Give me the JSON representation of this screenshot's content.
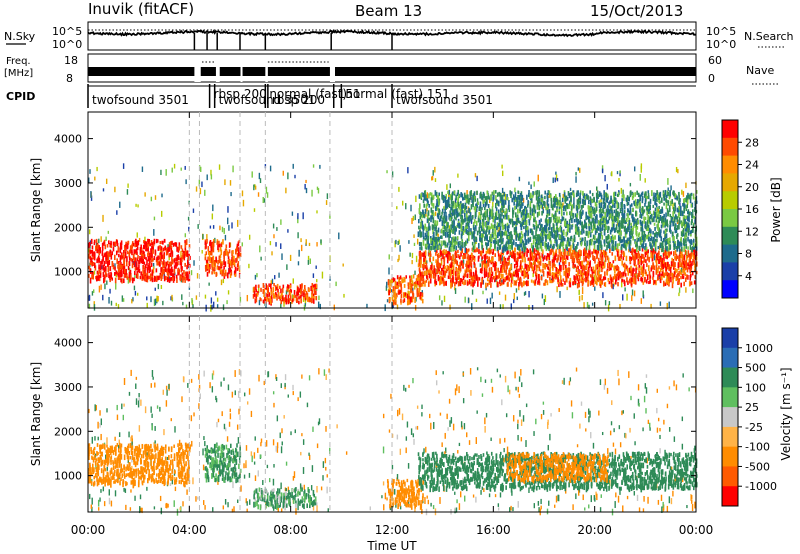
{
  "header": {
    "title_left": "Inuvik (fitACF)",
    "title_center": "Beam 13",
    "title_right": "15/Oct/2013"
  },
  "strips": {
    "nsky_label": "N.Sky",
    "nsky_ticks": [
      "10^5",
      "10^0"
    ],
    "nsearch_label": "N.Search",
    "nsearch_ticks": [
      "10^5",
      "10^0"
    ],
    "freq_label_1": "Freq.",
    "freq_label_2": "[MHz]",
    "freq_ticks": [
      "18",
      "8"
    ],
    "nave_label": "Nave",
    "nave_ticks": [
      "60",
      "0"
    ],
    "cpid_label": "CPID",
    "cpid_segments": [
      {
        "label": "twofsound  3501",
        "start": 0.0,
        "end": 4.05
      },
      {
        "label": "rbsp  200",
        "start": 4.8,
        "end": 6.0
      },
      {
        "label": "twofsound  3501",
        "start": 5.0,
        "end": 7.0
      },
      {
        "label": "normal  (fast)",
        "start": 7.0,
        "end": 9.5
      },
      {
        "label": "rbsp  200",
        "start": 7.1,
        "end": 8.2
      },
      {
        "label": "151",
        "start": 9.7,
        "end": 10.0
      },
      {
        "label": "normal  (fast)  151",
        "start": 10.0,
        "end": 12.0
      },
      {
        "label": "twofsound  3501",
        "start": 12.0,
        "end": 24.0
      }
    ]
  },
  "panels": {
    "power": {
      "ylabel": "Slant Range [km]",
      "cbar_label": "Power [dB]",
      "cbar_ticks": [
        "28",
        "24",
        "20",
        "16",
        "12",
        "8",
        "4"
      ],
      "cbar_colors": [
        "#ff0000",
        "#ff4a00",
        "#ff8c00",
        "#e6a800",
        "#b8cc00",
        "#7ac943",
        "#2e8b57",
        "#1e6b8c",
        "#1a3fa8",
        "#0000ff"
      ]
    },
    "velocity": {
      "ylabel": "Slant Range [km]",
      "cbar_label": "Velocity [m s⁻¹]",
      "cbar_ticks": [
        "1000",
        "500",
        "100",
        "25",
        "-25",
        "-100",
        "-500",
        "-1000"
      ],
      "cbar_colors": [
        "#1a3fa8",
        "#2a6db5",
        "#2e8b57",
        "#5fbf5f",
        "#c8c8c8",
        "#ffb347",
        "#ff8c00",
        "#ff5a00",
        "#ff0000"
      ]
    }
  },
  "xaxis": {
    "label": "Time UT",
    "ticks": [
      "00:00",
      "04:00",
      "08:00",
      "12:00",
      "16:00",
      "20:00",
      "00:00"
    ]
  },
  "chart_data": [
    {
      "type": "heatmap",
      "title": "Inuvik (fitACF)  Beam 13  15/Oct/2013",
      "quantity": "Power",
      "units": "dB",
      "xlabel": "Time UT",
      "ylabel": "Slant Range [km]",
      "xlim_hours": [
        0,
        24
      ],
      "ylim": [
        180,
        4600
      ],
      "zlim": [
        0,
        30
      ],
      "grid": false,
      "colorbar": "right",
      "features": [
        {
          "t_start": 0.0,
          "t_end": 4.0,
          "range_low": 800,
          "range_high": 1700,
          "value": 28
        },
        {
          "t_start": 4.6,
          "t_end": 6.0,
          "range_low": 900,
          "range_high": 1700,
          "value": 26
        },
        {
          "t_start": 6.5,
          "t_end": 9.0,
          "range_low": 300,
          "range_high": 700,
          "value": 26
        },
        {
          "t_start": 11.8,
          "t_end": 13.2,
          "range_low": 300,
          "range_high": 900,
          "value": 24
        },
        {
          "t_start": 13.0,
          "t_end": 24.0,
          "range_low": 700,
          "range_high": 1500,
          "value": 26
        },
        {
          "t_start": 13.0,
          "t_end": 24.0,
          "range_low": 1500,
          "range_high": 2800,
          "value": 10
        }
      ]
    },
    {
      "type": "heatmap",
      "title": "Inuvik (fitACF)  Beam 13  15/Oct/2013",
      "quantity": "Velocity",
      "units": "m s^-1",
      "xlabel": "Time UT",
      "ylabel": "Slant Range [km]",
      "xlim_hours": [
        0,
        24
      ],
      "ylim": [
        180,
        4600
      ],
      "zlim": [
        -1000,
        1000
      ],
      "grid": false,
      "colorbar": "right",
      "features": [
        {
          "t_start": 0.0,
          "t_end": 4.0,
          "range_low": 800,
          "range_high": 1700,
          "value": -300
        },
        {
          "t_start": 4.6,
          "t_end": 6.0,
          "range_low": 900,
          "range_high": 1700,
          "value": 150
        },
        {
          "t_start": 6.5,
          "t_end": 9.0,
          "range_low": 300,
          "range_high": 700,
          "value": 100
        },
        {
          "t_start": 11.8,
          "t_end": 13.2,
          "range_low": 300,
          "range_high": 900,
          "value": -300
        },
        {
          "t_start": 13.0,
          "t_end": 24.0,
          "range_low": 700,
          "range_high": 1500,
          "value": 300
        },
        {
          "t_start": 16.5,
          "t_end": 20.5,
          "range_low": 900,
          "range_high": 1500,
          "value": -300
        }
      ]
    }
  ]
}
